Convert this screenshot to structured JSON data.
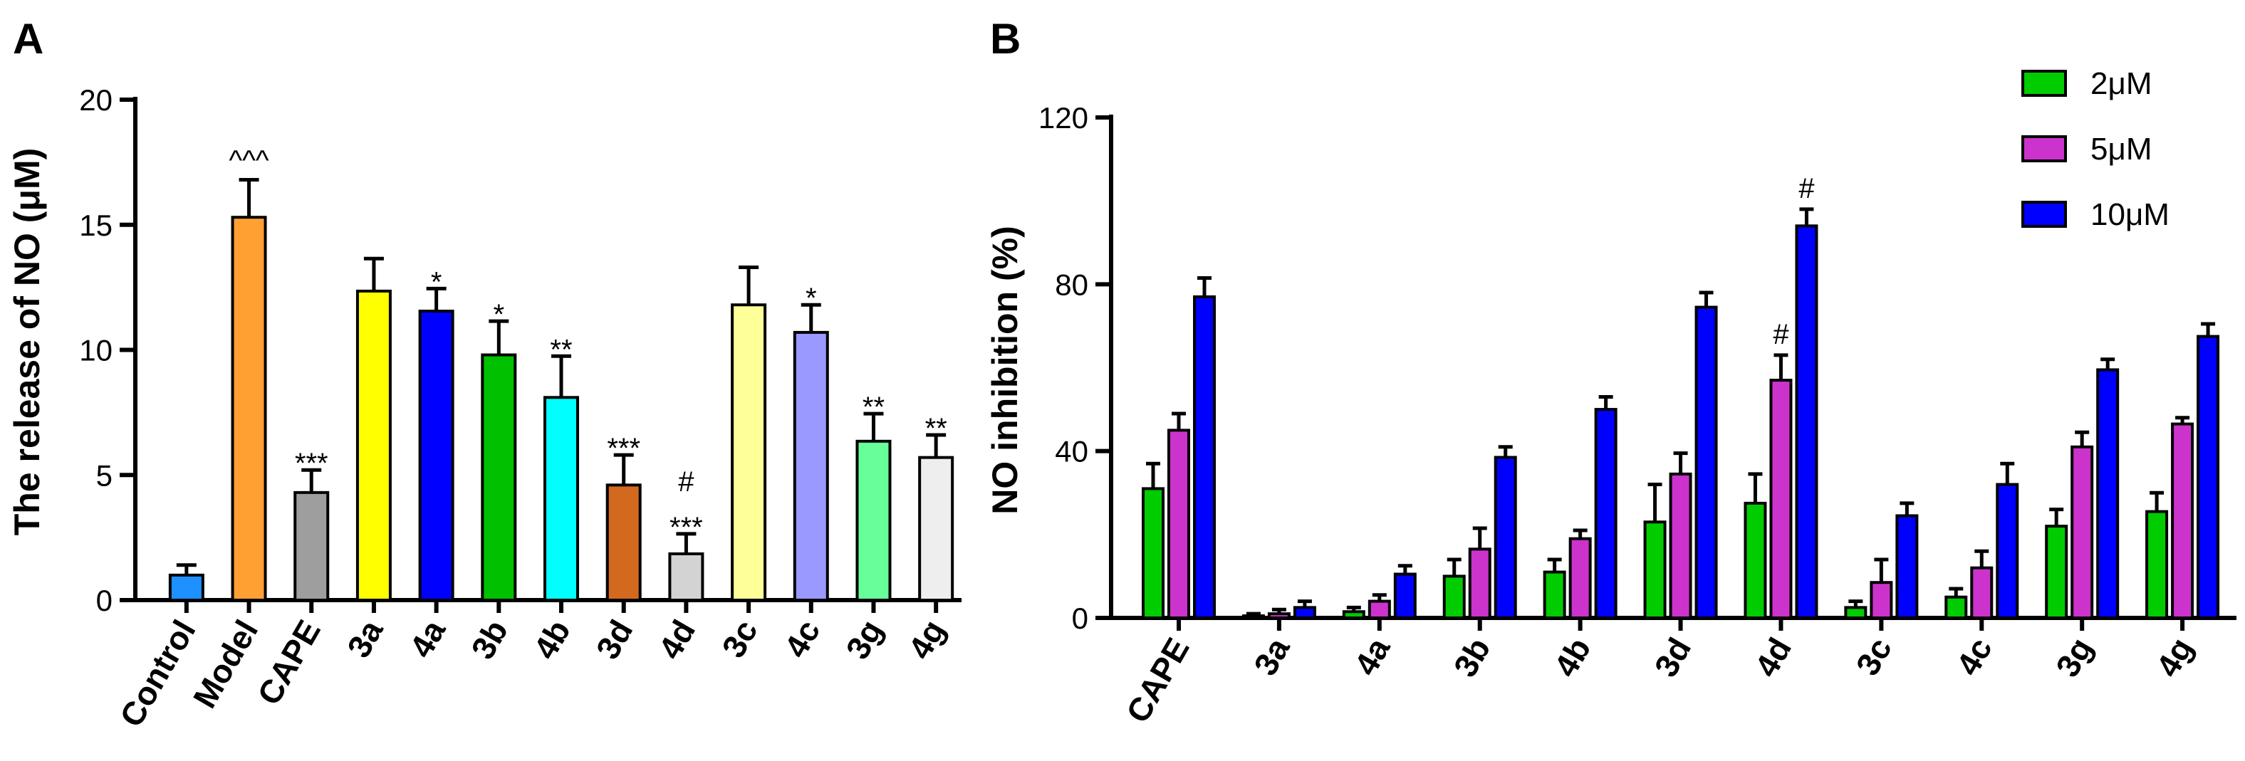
{
  "chart_data": [
    {
      "panel": "A",
      "type": "bar",
      "title": "",
      "xlabel": "",
      "ylabel": "The release of NO (μM)",
      "ylim": [
        0,
        20
      ],
      "yticks": [
        0,
        5,
        10,
        15,
        20
      ],
      "yticks_labels": [
        "0",
        "5",
        "10",
        "15",
        "20"
      ],
      "categories": [
        "Control",
        "Model",
        "CAPE",
        "3a",
        "4a",
        "3b",
        "4b",
        "3d",
        "4d",
        "3c",
        "4c",
        "3g",
        "4g"
      ],
      "values": [
        1.0,
        15.3,
        4.3,
        12.35,
        11.55,
        9.8,
        8.1,
        4.6,
        1.85,
        11.8,
        10.7,
        6.35,
        5.7
      ],
      "errors": [
        0.4,
        1.5,
        0.9,
        1.3,
        0.9,
        1.35,
        1.65,
        1.2,
        0.8,
        1.5,
        1.1,
        1.1,
        0.9
      ],
      "colors": [
        "#1e90ff",
        "#ffa033",
        "#9e9e9e",
        "#ffff00",
        "#0000ff",
        "#00c000",
        "#00ffff",
        "#d2691e",
        "#d3d3d3",
        "#ffff99",
        "#9999ff",
        "#66ff99",
        "#eeeeee"
      ],
      "annotations": [
        "",
        "^^^",
        "***",
        "",
        "*",
        "*",
        "**",
        "***",
        "#\n***",
        "",
        "*",
        "**",
        "**"
      ],
      "grid": false
    },
    {
      "panel": "B",
      "type": "bar",
      "title": "",
      "xlabel": "",
      "ylabel": "NO inhibition (%)",
      "ylim": [
        0,
        120
      ],
      "yticks": [
        0,
        40,
        80,
        120
      ],
      "yticks_labels": [
        "0",
        "40",
        "80",
        "120"
      ],
      "categories": [
        "CAPE",
        "3a",
        "4a",
        "3b",
        "4b",
        "3d",
        "4d",
        "3c",
        "4c",
        "3g",
        "4g"
      ],
      "series": [
        {
          "name": "2μM",
          "color": "#00cc00",
          "values": [
            31,
            0.5,
            1.5,
            10,
            11,
            23,
            27.5,
            2.5,
            5,
            22,
            25.5
          ],
          "errors": [
            6,
            0.5,
            1,
            4,
            3,
            9,
            7,
            1.5,
            2,
            4,
            4.5
          ],
          "annotations": [
            "",
            "",
            "",
            "",
            "",
            "",
            "",
            "",
            "",
            "",
            ""
          ]
        },
        {
          "name": "5μM",
          "color": "#cc33cc",
          "values": [
            45,
            1,
            4,
            16.5,
            19,
            34.5,
            57,
            8.5,
            12,
            41,
            46.5
          ],
          "errors": [
            4,
            1,
            1.5,
            5,
            2,
            5,
            6,
            5.5,
            4,
            3.5,
            1.5
          ],
          "annotations": [
            "",
            "",
            "",
            "",
            "",
            "",
            "#",
            "",
            "",
            "",
            ""
          ]
        },
        {
          "name": "10μM",
          "color": "#0000ff",
          "values": [
            77,
            2.5,
            10.5,
            38.5,
            50,
            74.5,
            94,
            24.5,
            32,
            59.5,
            67.5
          ],
          "errors": [
            4.5,
            1.5,
            2,
            2.5,
            3,
            3.5,
            4,
            3,
            5,
            2.5,
            3
          ],
          "annotations": [
            "",
            "",
            "",
            "",
            "",
            "",
            "#",
            "",
            "",
            "",
            ""
          ]
        }
      ],
      "legend_position": "top-right",
      "grid": false
    }
  ],
  "panels": {
    "a_label": "A",
    "b_label": "B"
  }
}
